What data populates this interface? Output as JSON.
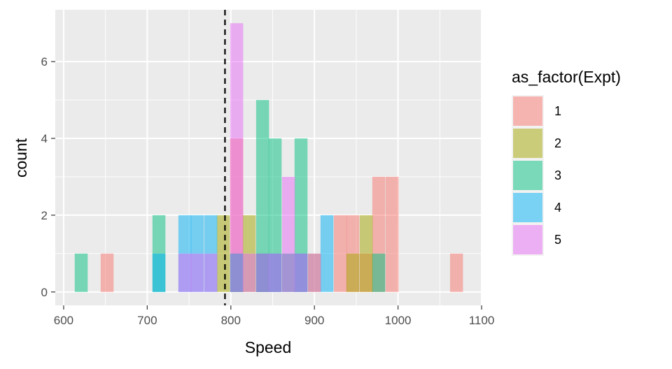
{
  "chart_data": {
    "type": "bar",
    "subtype": "overlapping-histogram",
    "xlabel": "Speed",
    "ylabel": "count",
    "xlim": [
      590,
      1100
    ],
    "ylim": [
      -0.35,
      7.35
    ],
    "xticks": [
      600,
      700,
      800,
      900,
      1000,
      1100
    ],
    "yticks": [
      0,
      2,
      4,
      6
    ],
    "bin_width": 15.5,
    "grid": true,
    "bar_opacity": 0.5,
    "vline": {
      "x": 793,
      "style": "dashed",
      "color": "#000000"
    },
    "legend": {
      "title": "as_factor(Expt)",
      "position": "right"
    },
    "series": [
      {
        "name": "1",
        "color": "#F8766D",
        "bins": [
          {
            "x": 652,
            "count": 1
          },
          {
            "x": 807,
            "count": 4
          },
          {
            "x": 838,
            "count": 1
          },
          {
            "x": 853,
            "count": 1
          },
          {
            "x": 884,
            "count": 1
          },
          {
            "x": 931,
            "count": 2
          },
          {
            "x": 946,
            "count": 2
          },
          {
            "x": 962,
            "count": 1
          },
          {
            "x": 977,
            "count": 3
          },
          {
            "x": 993,
            "count": 3
          },
          {
            "x": 1070,
            "count": 1
          }
        ]
      },
      {
        "name": "2",
        "color": "#A3A500",
        "bins": [
          {
            "x": 791,
            "count": 2
          },
          {
            "x": 807,
            "count": 1
          },
          {
            "x": 822,
            "count": 2
          },
          {
            "x": 838,
            "count": 1
          },
          {
            "x": 869,
            "count": 1
          },
          {
            "x": 900,
            "count": 1
          },
          {
            "x": 946,
            "count": 1
          },
          {
            "x": 962,
            "count": 2
          }
        ]
      },
      {
        "name": "3",
        "color": "#00BF7D",
        "bins": [
          {
            "x": 621,
            "count": 1
          },
          {
            "x": 714,
            "count": 2
          },
          {
            "x": 807,
            "count": 1
          },
          {
            "x": 838,
            "count": 5
          },
          {
            "x": 853,
            "count": 4
          },
          {
            "x": 884,
            "count": 4
          },
          {
            "x": 977,
            "count": 1
          }
        ]
      },
      {
        "name": "4",
        "color": "#00B0F6",
        "bins": [
          {
            "x": 714,
            "count": 1
          },
          {
            "x": 745,
            "count": 2
          },
          {
            "x": 760,
            "count": 2
          },
          {
            "x": 776,
            "count": 2
          },
          {
            "x": 807,
            "count": 1
          },
          {
            "x": 838,
            "count": 1
          },
          {
            "x": 853,
            "count": 1
          },
          {
            "x": 869,
            "count": 1
          },
          {
            "x": 884,
            "count": 1
          },
          {
            "x": 915,
            "count": 2
          }
        ]
      },
      {
        "name": "5",
        "color": "#E76BF3",
        "bins": [
          {
            "x": 745,
            "count": 1
          },
          {
            "x": 760,
            "count": 1
          },
          {
            "x": 776,
            "count": 1
          },
          {
            "x": 807,
            "count": 7
          },
          {
            "x": 822,
            "count": 1
          },
          {
            "x": 838,
            "count": 1
          },
          {
            "x": 853,
            "count": 1
          },
          {
            "x": 869,
            "count": 3
          },
          {
            "x": 884,
            "count": 1
          },
          {
            "x": 900,
            "count": 1
          }
        ]
      }
    ]
  }
}
